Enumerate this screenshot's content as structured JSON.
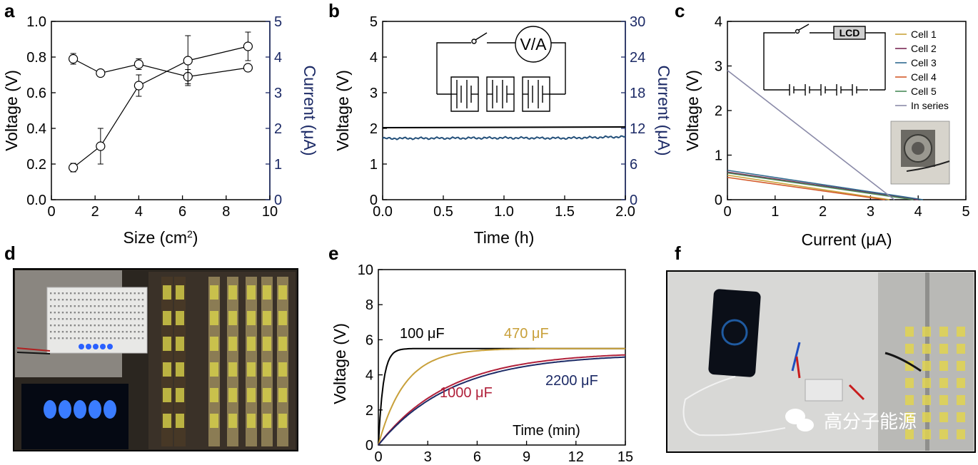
{
  "panel_labels": [
    "a",
    "b",
    "c",
    "d",
    "e",
    "f"
  ],
  "colors": {
    "axis": "#000000",
    "right_axis": "#1c2a66",
    "blue_trace": "#24507a",
    "photo_bg": "#2b2620"
  },
  "chart_data": [
    {
      "panel": "a",
      "type": "scatter",
      "xlabel": "Size (cm",
      "xlabel_sup": "2",
      "xlabel_end": ")",
      "ylabel": "Voltage (V)",
      "y2label": "Current (μA)",
      "xlim": [
        0,
        10
      ],
      "ylim": [
        0.0,
        1.0
      ],
      "y2lim": [
        0,
        5
      ],
      "xticks": [
        "0",
        "2",
        "4",
        "6",
        "8",
        "10"
      ],
      "yticks": [
        "0.0",
        "0.2",
        "0.4",
        "0.6",
        "0.8",
        "1.0"
      ],
      "y2ticks": [
        "0",
        "1",
        "2",
        "3",
        "4",
        "5"
      ],
      "series": [
        {
          "name": "Voltage",
          "axis": "left",
          "x": [
            1,
            2.25,
            4,
            6.25,
            9
          ],
          "y": [
            0.79,
            0.71,
            0.76,
            0.69,
            0.74
          ],
          "err": [
            0.03,
            0.02,
            0.03,
            0.04,
            0.02
          ]
        },
        {
          "name": "Current",
          "axis": "right",
          "x": [
            1,
            2.25,
            4,
            6.25,
            9
          ],
          "y": [
            0.9,
            1.5,
            3.2,
            3.9,
            4.3
          ],
          "err": [
            0.12,
            0.5,
            0.3,
            0.7,
            0.4
          ]
        }
      ]
    },
    {
      "panel": "b",
      "type": "line",
      "xlabel": "Time (h)",
      "ylabel": "Voltage (V)",
      "y2label": "Current (μA)",
      "xlim": [
        0,
        2
      ],
      "ylim": [
        0,
        5
      ],
      "y2lim": [
        0,
        30
      ],
      "xticks": [
        "0.0",
        "0.5",
        "1.0",
        "1.5",
        "2.0"
      ],
      "yticks": [
        "0",
        "1",
        "2",
        "3",
        "4",
        "5"
      ],
      "y2ticks": [
        "0",
        "6",
        "12",
        "18",
        "24",
        "30"
      ],
      "series": [
        {
          "name": "Voltage",
          "axis": "left",
          "x": [
            0,
            2
          ],
          "y": [
            2.02,
            2.04
          ]
        },
        {
          "name": "Current",
          "axis": "right",
          "x": [
            0,
            0.5,
            1.0,
            1.5,
            2.0
          ],
          "y": [
            10.3,
            10.35,
            10.4,
            10.35,
            10.6
          ]
        }
      ],
      "circuit_label": "V/A"
    },
    {
      "panel": "c",
      "type": "line",
      "xlabel": "Current (μA)",
      "ylabel": "Voltage (V)",
      "xlim": [
        0,
        5
      ],
      "ylim": [
        0,
        4
      ],
      "xticks": [
        "0",
        "1",
        "2",
        "3",
        "4",
        "5"
      ],
      "yticks": [
        "0",
        "1",
        "2",
        "3",
        "4"
      ],
      "circuit_label": "LCD",
      "series": [
        {
          "name": "Cell 1",
          "color": "#c9a43c",
          "x": [
            0,
            3.4
          ],
          "y": [
            0.55,
            0
          ]
        },
        {
          "name": "Cell 2",
          "color": "#7a2a55",
          "x": [
            0,
            4.0
          ],
          "y": [
            0.62,
            0
          ]
        },
        {
          "name": "Cell 3",
          "color": "#2f6a8f",
          "x": [
            0,
            4.1
          ],
          "y": [
            0.66,
            0
          ]
        },
        {
          "name": "Cell 4",
          "color": "#d45a2a",
          "x": [
            0,
            3.3
          ],
          "y": [
            0.5,
            0
          ]
        },
        {
          "name": "Cell 5",
          "color": "#4a8a5a",
          "x": [
            0,
            3.9
          ],
          "y": [
            0.6,
            0
          ]
        },
        {
          "name": "In series",
          "color": "#8a8aa8",
          "x": [
            0,
            3.5
          ],
          "y": [
            2.9,
            0
          ]
        }
      ]
    },
    {
      "panel": "e",
      "type": "line",
      "xlabel": "Time (min)",
      "ylabel": "Voltage (V)",
      "xlim": [
        0,
        15
      ],
      "ylim": [
        0,
        10
      ],
      "xticks": [
        "0",
        "3",
        "6",
        "9",
        "12",
        "15"
      ],
      "yticks": [
        "0",
        "2",
        "4",
        "6",
        "8",
        "10"
      ],
      "series": [
        {
          "name": "100 μF",
          "color": "#000000",
          "vmax": 5.5,
          "tau": 0.3
        },
        {
          "name": "470 μF",
          "color": "#c8a03a",
          "vmax": 5.5,
          "tau": 1.6
        },
        {
          "name": "1000 μF",
          "color": "#b0203a",
          "vmax": 5.3,
          "tau": 4.3
        },
        {
          "name": "2200 μF",
          "color": "#1c2a66",
          "vmax": 5.2,
          "tau": 4.5
        }
      ]
    }
  ],
  "watermark": "高分子能源"
}
